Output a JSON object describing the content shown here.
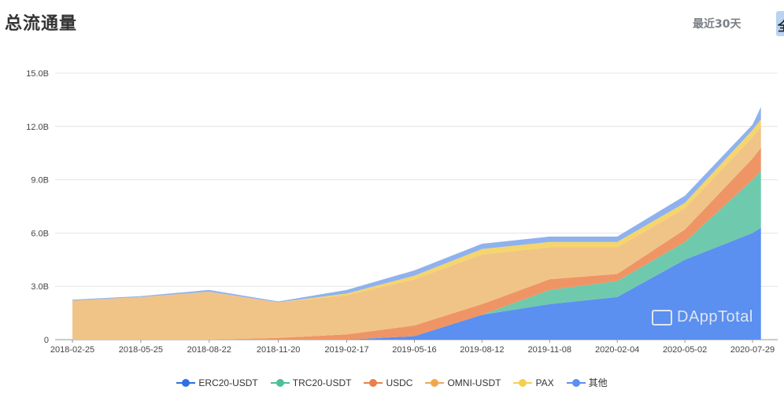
{
  "page": {
    "title": "总流通量",
    "range_recent": "最近30天",
    "range_all": "全"
  },
  "watermark": "DAppTotal",
  "colors": {
    "ERC20-USDT": "#5b8ff0",
    "TRC20-USDT": "#6fc9ad",
    "USDC": "#ef9565",
    "OMNI-USDT": "#f0c487",
    "PAX": "#f6d56c",
    "其他": "#8fb2ee",
    "legend_ERC20-USDT": "#2f6fe0",
    "legend_TRC20-USDT": "#4dbf9a",
    "legend_USDC": "#e8804a",
    "legend_OMNI-USDT": "#f0a850",
    "legend_PAX": "#f5d04f",
    "legend_其他": "#5b8ff0"
  },
  "chart_data": {
    "type": "area",
    "stacked": true,
    "title": "",
    "xlabel": "",
    "ylabel": "",
    "ylim": [
      0,
      15
    ],
    "y_unit": "B",
    "y_ticks": [
      "0",
      "3.0B",
      "6.0B",
      "9.0B",
      "12.0B",
      "15.0B"
    ],
    "x_ticks": [
      "2018-02-25",
      "2018-05-25",
      "2018-08-22",
      "2018-11-20",
      "2019-02-17",
      "2019-05-16",
      "2019-08-12",
      "2019-11-08",
      "2020-02-04",
      "2020-05-02",
      "2020-07-29"
    ],
    "grid": true,
    "legend_position": "bottom",
    "x": [
      "2018-02-25",
      "2018-05-25",
      "2018-08-22",
      "2018-11-20",
      "2019-02-17",
      "2019-05-16",
      "2019-08-12",
      "2019-11-08",
      "2020-02-04",
      "2020-05-02",
      "2020-07-29",
      "2020-08-09"
    ],
    "series": [
      {
        "name": "ERC20-USDT",
        "values": [
          0.0,
          0.0,
          0.0,
          0.0,
          0.0,
          0.2,
          1.4,
          2.0,
          2.4,
          4.5,
          6.0,
          6.3
        ]
      },
      {
        "name": "TRC20-USDT",
        "values": [
          0.0,
          0.0,
          0.0,
          0.0,
          0.0,
          0.0,
          0.0,
          0.8,
          0.9,
          1.0,
          3.0,
          3.2
        ]
      },
      {
        "name": "USDC",
        "values": [
          0.0,
          0.0,
          0.0,
          0.1,
          0.3,
          0.6,
          0.6,
          0.6,
          0.4,
          0.7,
          1.2,
          1.3
        ]
      },
      {
        "name": "OMNI-USDT",
        "values": [
          2.2,
          2.4,
          2.7,
          2.0,
          2.2,
          2.6,
          2.8,
          1.8,
          1.5,
          1.2,
          1.2,
          1.2
        ]
      },
      {
        "name": "PAX",
        "values": [
          0.0,
          0.0,
          0.0,
          0.0,
          0.1,
          0.2,
          0.3,
          0.3,
          0.3,
          0.3,
          0.4,
          0.4
        ]
      },
      {
        "name": "其他",
        "values": [
          0.05,
          0.05,
          0.1,
          0.05,
          0.2,
          0.3,
          0.3,
          0.3,
          0.3,
          0.4,
          0.3,
          0.7
        ]
      }
    ]
  }
}
